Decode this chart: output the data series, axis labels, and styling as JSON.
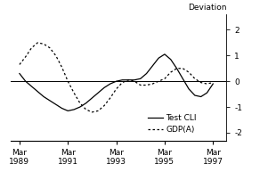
{
  "title": "",
  "ylabel": "Deviation",
  "ylim": [
    -2.3,
    2.6
  ],
  "yticks": [
    -2,
    -1,
    0,
    1,
    2
  ],
  "xlim_start": 1988.9,
  "xlim_end": 1997.8,
  "xtick_positions": [
    1989.25,
    1991.25,
    1993.25,
    1995.25,
    1997.25
  ],
  "xtick_labels": [
    "Mar\n1989",
    "Mar\n1991",
    "Mar\n1993",
    "Mar\n1995",
    "Mar\n1997"
  ],
  "cli_x": [
    1989.25,
    1989.5,
    1989.75,
    1990.0,
    1990.25,
    1990.5,
    1990.75,
    1991.0,
    1991.25,
    1991.5,
    1991.75,
    1992.0,
    1992.25,
    1992.5,
    1992.75,
    1993.0,
    1993.25,
    1993.5,
    1993.75,
    1994.0,
    1994.25,
    1994.5,
    1994.75,
    1995.0,
    1995.25,
    1995.5,
    1995.75,
    1996.0,
    1996.25,
    1996.5,
    1996.75,
    1997.0,
    1997.25
  ],
  "cli_y": [
    0.3,
    0.0,
    -0.2,
    -0.4,
    -0.6,
    -0.75,
    -0.9,
    -1.05,
    -1.15,
    -1.1,
    -1.0,
    -0.85,
    -0.65,
    -0.45,
    -0.25,
    -0.1,
    0.0,
    0.05,
    0.05,
    0.05,
    0.1,
    0.3,
    0.6,
    0.9,
    1.05,
    0.85,
    0.5,
    0.1,
    -0.3,
    -0.55,
    -0.6,
    -0.45,
    -0.1
  ],
  "gdp_x": [
    1989.25,
    1989.5,
    1989.75,
    1990.0,
    1990.25,
    1990.5,
    1990.75,
    1991.0,
    1991.25,
    1991.5,
    1991.75,
    1992.0,
    1992.25,
    1992.5,
    1992.75,
    1993.0,
    1993.25,
    1993.5,
    1993.75,
    1994.0,
    1994.25,
    1994.5,
    1994.75,
    1995.0,
    1995.25,
    1995.5,
    1995.75,
    1996.0,
    1996.25,
    1996.5,
    1996.75,
    1997.0,
    1997.25
  ],
  "gdp_y": [
    0.65,
    0.95,
    1.3,
    1.5,
    1.45,
    1.3,
    1.0,
    0.55,
    0.0,
    -0.45,
    -0.85,
    -1.1,
    -1.2,
    -1.15,
    -0.95,
    -0.65,
    -0.3,
    -0.05,
    0.05,
    0.0,
    -0.15,
    -0.15,
    -0.1,
    0.0,
    0.1,
    0.35,
    0.5,
    0.5,
    0.35,
    0.1,
    -0.05,
    -0.1,
    -0.05
  ],
  "cli_color": "#000000",
  "gdp_color": "#000000",
  "background_color": "#ffffff",
  "legend_cli_label": "Test CLI",
  "legend_gdp_label": "GDP(A)"
}
